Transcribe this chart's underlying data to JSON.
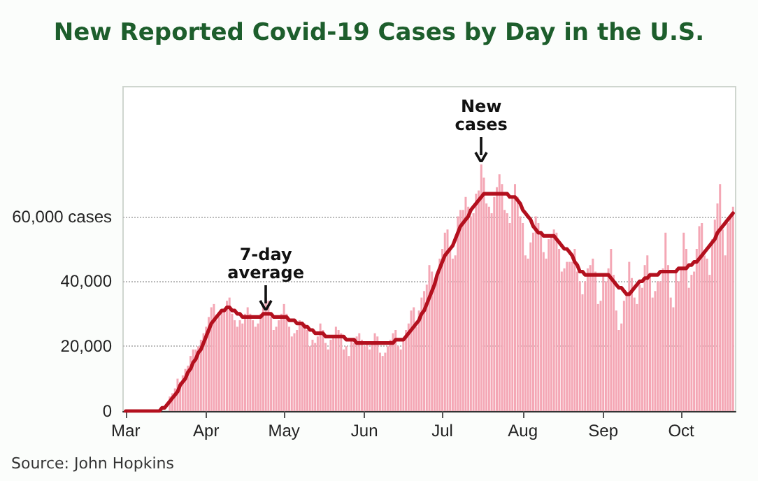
{
  "chart_data": {
    "type": "bar",
    "title": "New Reported Covid-19 Cases by Day in the U.S.",
    "x": [
      "--03-01",
      "--03-02",
      "--03-03",
      "--03-04",
      "--03-05",
      "--03-06",
      "--03-07",
      "--03-08",
      "--03-09",
      "--03-10",
      "--03-11",
      "--03-12",
      "--03-13",
      "--03-14",
      "--03-15",
      "--03-16",
      "--03-17",
      "--03-18",
      "--03-19",
      "--03-20",
      "--03-21",
      "--03-22",
      "--03-23",
      "--03-24",
      "--03-25",
      "--03-26",
      "--03-27",
      "--03-28",
      "--03-29",
      "--03-30",
      "--03-31",
      "--04-01",
      "--04-02",
      "--04-03",
      "--04-04",
      "--04-05",
      "--04-06",
      "--04-07",
      "--04-08",
      "--04-09",
      "--04-10",
      "--04-11",
      "--04-12",
      "--04-13",
      "--04-14",
      "--04-15",
      "--04-16",
      "--04-17",
      "--04-18",
      "--04-19",
      "--04-20",
      "--04-21",
      "--04-22",
      "--04-23",
      "--04-24",
      "--04-25",
      "--04-26",
      "--04-27",
      "--04-28",
      "--04-29",
      "--04-30",
      "--05-01",
      "--05-02",
      "--05-03",
      "--05-04",
      "--05-05",
      "--05-06",
      "--05-07",
      "--05-08",
      "--05-09",
      "--05-10",
      "--05-11",
      "--05-12",
      "--05-13",
      "--05-14",
      "--05-15",
      "--05-16",
      "--05-17",
      "--05-18",
      "--05-19",
      "--05-20",
      "--05-21",
      "--05-22",
      "--05-23",
      "--05-24",
      "--05-25",
      "--05-26",
      "--05-27",
      "--05-28",
      "--05-29",
      "--05-30",
      "--05-31",
      "--06-01",
      "--06-02",
      "--06-03",
      "--06-04",
      "--06-05",
      "--06-06",
      "--06-07",
      "--06-08",
      "--06-09",
      "--06-10",
      "--06-11",
      "--06-12",
      "--06-13",
      "--06-14",
      "--06-15",
      "--06-16",
      "--06-17",
      "--06-18",
      "--06-19",
      "--06-20",
      "--06-21",
      "--06-22",
      "--06-23",
      "--06-24",
      "--06-25",
      "--06-26",
      "--06-27",
      "--06-28",
      "--06-29",
      "--06-30",
      "--07-01",
      "--07-02",
      "--07-03",
      "--07-04",
      "--07-05",
      "--07-06",
      "--07-07",
      "--07-08",
      "--07-09",
      "--07-10",
      "--07-11",
      "--07-12",
      "--07-13",
      "--07-14",
      "--07-15",
      "--07-16",
      "--07-17",
      "--07-18",
      "--07-19",
      "--07-20",
      "--07-21",
      "--07-22",
      "--07-23",
      "--07-24",
      "--07-25",
      "--07-26",
      "--07-27",
      "--07-28",
      "--07-29",
      "--07-30",
      "--07-31",
      "--08-01",
      "--08-02",
      "--08-03",
      "--08-04",
      "--08-05",
      "--08-06",
      "--08-07",
      "--08-08",
      "--08-09",
      "--08-10",
      "--08-11",
      "--08-12",
      "--08-13",
      "--08-14",
      "--08-15",
      "--08-16",
      "--08-17",
      "--08-18",
      "--08-19",
      "--08-20",
      "--08-21",
      "--08-22",
      "--08-23",
      "--08-24",
      "--08-25",
      "--08-26",
      "--08-27",
      "--08-28",
      "--08-29",
      "--08-30",
      "--08-31",
      "--09-01",
      "--09-02",
      "--09-03",
      "--09-04",
      "--09-05",
      "--09-06",
      "--09-07",
      "--09-08",
      "--09-09",
      "--09-10",
      "--09-11",
      "--09-12",
      "--09-13",
      "--09-14",
      "--09-15",
      "--09-16",
      "--09-17",
      "--09-18",
      "--09-19",
      "--09-20",
      "--09-21",
      "--09-22",
      "--09-23",
      "--09-24",
      "--09-25",
      "--09-26",
      "--09-27",
      "--09-28",
      "--09-29",
      "--09-30",
      "--10-01",
      "--10-02",
      "--10-03",
      "--10-04",
      "--10-05",
      "--10-06",
      "--10-07",
      "--10-08",
      "--10-09",
      "--10-10",
      "--10-11",
      "--10-12",
      "--10-13",
      "--10-14",
      "--10-15",
      "--10-16",
      "--10-17",
      "--10-18",
      "--10-19",
      "--10-20",
      "--10-21"
    ],
    "series": [
      {
        "color": "#f4a7b5",
        "values": [
          0,
          0,
          0,
          0,
          0,
          0,
          0,
          0,
          0,
          0,
          0,
          0,
          0,
          0,
          0,
          null,
          null,
          4500,
          5500,
          7000,
          10000,
          9000,
          11000,
          13000,
          14000,
          17000,
          19000,
          19000,
          20000,
          22000,
          24000,
          26000,
          29000,
          32000,
          33000,
          28000,
          29000,
          31000,
          31000,
          34000,
          35000,
          30000,
          28000,
          26000,
          28000,
          27000,
          30000,
          32000,
          30000,
          28000,
          26000,
          27000,
          30000,
          33000,
          35000,
          34000,
          29000,
          25000,
          26000,
          28000,
          30000,
          33000,
          30000,
          26000,
          23000,
          24000,
          25000,
          28000,
          27000,
          27000,
          25000,
          20000,
          22000,
          21000,
          23000,
          27000,
          25000,
          21000,
          19000,
          22000,
          23000,
          26000,
          25000,
          24000,
          19000,
          20000,
          17000,
          22000,
          21000,
          23000,
          24000,
          22000,
          20000,
          21000,
          19000,
          21000,
          24000,
          23000,
          18000,
          17000,
          18000,
          20000,
          22000,
          24000,
          25000,
          20000,
          19000,
          22000,
          25000,
          27000,
          31000,
          32000,
          26000,
          31000,
          35000,
          37000,
          39000,
          45000,
          43000,
          39000,
          42000,
          47000,
          50000,
          55000,
          56000,
          50000,
          47000,
          48000,
          60000,
          62000,
          62000,
          66000,
          63000,
          60000,
          61000,
          67000,
          68000,
          76000,
          72000,
          64000,
          63000,
          61000,
          66000,
          69000,
          73000,
          70000,
          62000,
          61000,
          58000,
          66000,
          70000,
          66000,
          60000,
          58000,
          48000,
          47000,
          52000,
          55000,
          60000,
          58000,
          55000,
          49000,
          47000,
          53000,
          54000,
          56000,
          55000,
          50000,
          43000,
          44000,
          46000,
          46000,
          46000,
          50000,
          43000,
          40000,
          36000,
          40000,
          44000,
          45000,
          47000,
          43000,
          33000,
          34000,
          42000,
          40000,
          44000,
          50000,
          42000,
          31000,
          25000,
          27000,
          34000,
          36000,
          46000,
          41000,
          35000,
          33000,
          39000,
          38000,
          45000,
          48000,
          42000,
          35000,
          37000,
          40000,
          40000,
          44000,
          55000,
          45000,
          35000,
          32000,
          43000,
          40000,
          44000,
          55000,
          50000,
          38000,
          42000,
          43000,
          50000,
          57000,
          58000,
          48000,
          47000,
          42000,
          53000,
          59000,
          64000,
          70000,
          56000,
          48000,
          58000,
          60000,
          63000
        ]
      },
      {
        "type": "line",
        "color": "#b3101e",
        "values": [
          0,
          0,
          0,
          0,
          0,
          0,
          0,
          0,
          0,
          0,
          0,
          0,
          0,
          0,
          1000,
          1000,
          2000,
          3000,
          4000,
          5000,
          6000,
          8000,
          9000,
          10000,
          12000,
          13000,
          15000,
          16000,
          18000,
          19000,
          21000,
          23000,
          25000,
          27000,
          28000,
          29000,
          30000,
          31000,
          31000,
          32000,
          32000,
          31000,
          31000,
          30000,
          30000,
          29000,
          29000,
          29000,
          29000,
          29000,
          29000,
          29000,
          29000,
          30000,
          30000,
          30000,
          30000,
          29000,
          29000,
          29000,
          29000,
          29000,
          29000,
          28000,
          28000,
          28000,
          27000,
          27000,
          27000,
          26000,
          26000,
          25000,
          25000,
          24000,
          24000,
          24000,
          24000,
          23000,
          23000,
          23000,
          23000,
          23000,
          23000,
          23000,
          23000,
          22000,
          22000,
          22000,
          22000,
          21000,
          21000,
          21000,
          21000,
          21000,
          21000,
          21000,
          21000,
          21000,
          21000,
          21000,
          21000,
          21000,
          21000,
          21000,
          22000,
          22000,
          22000,
          22000,
          23000,
          24000,
          25000,
          26000,
          27000,
          28000,
          30000,
          31000,
          33000,
          35000,
          37000,
          39000,
          42000,
          44000,
          46000,
          48000,
          49000,
          50000,
          51000,
          53000,
          55000,
          57000,
          58000,
          59000,
          60000,
          62000,
          63000,
          64000,
          65000,
          66000,
          67000,
          67000,
          67000,
          67000,
          67000,
          67000,
          67000,
          67000,
          67000,
          67000,
          66000,
          66000,
          66000,
          65000,
          64000,
          62000,
          61000,
          60000,
          59000,
          57000,
          56000,
          55000,
          55000,
          54000,
          54000,
          54000,
          54000,
          54000,
          53000,
          52000,
          51000,
          50000,
          50000,
          49000,
          48000,
          46000,
          45000,
          43000,
          43000,
          42000,
          42000,
          42000,
          42000,
          42000,
          42000,
          42000,
          42000,
          42000,
          42000,
          41000,
          40000,
          39000,
          38000,
          38000,
          37000,
          36000,
          36000,
          37000,
          38000,
          39000,
          40000,
          40000,
          41000,
          41000,
          42000,
          42000,
          42000,
          42000,
          43000,
          43000,
          43000,
          43000,
          43000,
          43000,
          43000,
          44000,
          44000,
          44000,
          44000,
          45000,
          45000,
          46000,
          46000,
          47000,
          48000,
          49000,
          50000,
          51000,
          52000,
          53000,
          55000,
          56000,
          57000,
          58000,
          59000,
          60000,
          61000
        ]
      }
    ],
    "xlim": [
      "--02-29",
      "--10-22"
    ],
    "xticks": [
      {
        "value": "--03-01",
        "label": "Mar"
      },
      {
        "value": "--04-01",
        "label": "Apr"
      },
      {
        "value": "--05-01",
        "label": "May"
      },
      {
        "value": "--06-01",
        "label": "Jun"
      },
      {
        "value": "--07-01",
        "label": "Jul"
      },
      {
        "value": "--08-01",
        "label": "Aug"
      },
      {
        "value": "--09-01",
        "label": "Sep"
      },
      {
        "value": "--10-01",
        "label": "Oct"
      }
    ],
    "ylim": [
      0,
      100000
    ],
    "yticks": [
      0,
      {
        "value": 20000,
        "label": "20,000"
      },
      {
        "value": 40000,
        "label": "40,000"
      },
      {
        "value": 60000,
        "label": "60,000 cases"
      }
    ],
    "grid": "y",
    "marker": "none",
    "line_style": "solid",
    "annotations": [
      {
        "text": "7-day average",
        "x": "--04-24",
        "y": 30000
      },
      {
        "text": "New cases",
        "x": "--07-16",
        "y": 76000
      },
      "Source: John Hopkins"
    ]
  }
}
